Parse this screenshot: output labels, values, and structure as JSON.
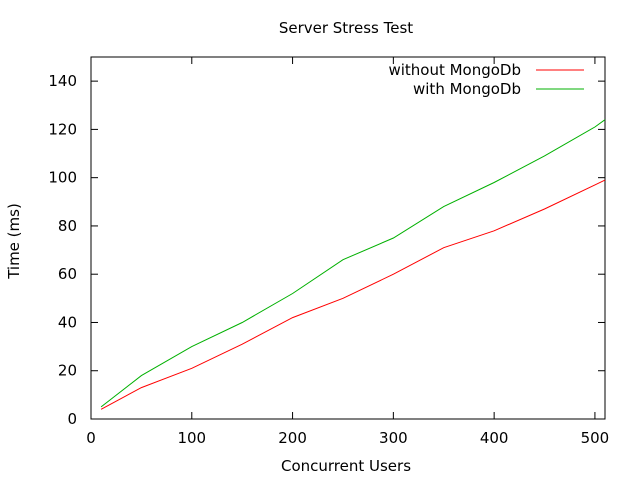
{
  "chart_data": {
    "type": "line",
    "title": "Server Stress Test",
    "xlabel": "Concurrent Users",
    "ylabel": "Time (ms)",
    "xlim": [
      0,
      510
    ],
    "ylim": [
      0,
      150
    ],
    "xticks": [
      0,
      100,
      200,
      300,
      400,
      500
    ],
    "yticks": [
      0,
      20,
      40,
      60,
      80,
      100,
      120,
      140
    ],
    "grid": false,
    "legend_position": "top-right",
    "series": [
      {
        "name": "without MongoDb",
        "color": "#ff0000",
        "x": [
          10,
          50,
          100,
          150,
          200,
          250,
          300,
          350,
          400,
          450,
          500,
          510
        ],
        "y": [
          4,
          13,
          21,
          31,
          42,
          50,
          60,
          71,
          78,
          87,
          97,
          99
        ]
      },
      {
        "name": "with MongoDb",
        "color": "#00b000",
        "x": [
          10,
          50,
          100,
          150,
          200,
          250,
          300,
          350,
          400,
          450,
          500,
          510
        ],
        "y": [
          5,
          18,
          30,
          40,
          52,
          66,
          75,
          88,
          98,
          109,
          121,
          124
        ]
      }
    ]
  }
}
